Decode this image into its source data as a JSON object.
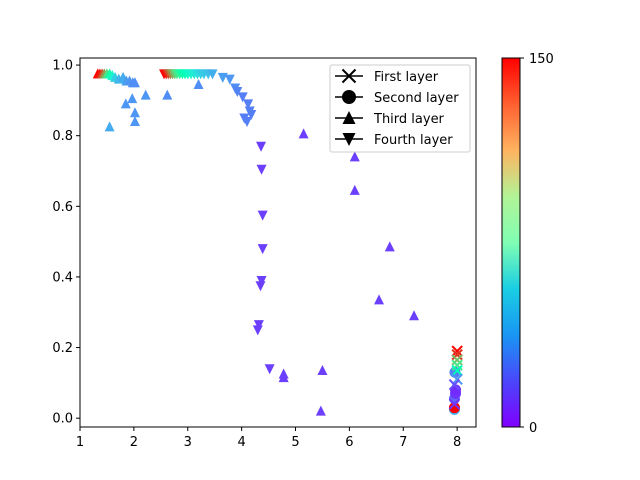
{
  "chart_data": {
    "type": "scatter",
    "title": "",
    "xlabel": "",
    "ylabel": "",
    "xlim": [
      1.0,
      8.35
    ],
    "ylim": [
      -0.025,
      1.02
    ],
    "xticks": [
      "1",
      "2",
      "3",
      "4",
      "5",
      "6",
      "7",
      "8"
    ],
    "yticks": [
      "0.0",
      "0.2",
      "0.4",
      "0.6",
      "0.8",
      "1.0"
    ],
    "grid": false,
    "legend_position": "top-right",
    "colorbar": {
      "min": 0,
      "max": 150,
      "tick_labels": [
        "0",
        "150"
      ],
      "colormap": "rainbow"
    },
    "series": [
      {
        "name": "First layer",
        "marker": "x",
        "points": [
          {
            "x": 8.0,
            "y": 0.19,
            "c": 150
          },
          {
            "x": 8.0,
            "y": 0.18,
            "c": 140
          },
          {
            "x": 8.0,
            "y": 0.165,
            "c": 110
          },
          {
            "x": 8.0,
            "y": 0.15,
            "c": 95
          },
          {
            "x": 8.0,
            "y": 0.135,
            "c": 75
          },
          {
            "x": 8.0,
            "y": 0.11,
            "c": 30
          },
          {
            "x": 7.95,
            "y": 0.095,
            "c": 15
          },
          {
            "x": 7.95,
            "y": 0.04,
            "c": 10
          }
        ]
      },
      {
        "name": "Second layer",
        "marker": "o",
        "points": [
          {
            "x": 7.95,
            "y": 0.025,
            "c": 35
          },
          {
            "x": 7.95,
            "y": 0.03,
            "c": 150
          },
          {
            "x": 7.95,
            "y": 0.055,
            "c": 20
          },
          {
            "x": 7.97,
            "y": 0.07,
            "c": 10
          },
          {
            "x": 7.97,
            "y": 0.08,
            "c": 8
          },
          {
            "x": 7.96,
            "y": 0.13,
            "c": 25
          }
        ]
      },
      {
        "name": "Third layer",
        "marker": "^",
        "points": [
          {
            "x": 1.33,
            "y": 0.975,
            "c": 150
          },
          {
            "x": 1.37,
            "y": 0.975,
            "c": 145
          },
          {
            "x": 1.41,
            "y": 0.975,
            "c": 135
          },
          {
            "x": 1.45,
            "y": 0.975,
            "c": 120
          },
          {
            "x": 1.5,
            "y": 0.975,
            "c": 100
          },
          {
            "x": 1.55,
            "y": 0.975,
            "c": 80
          },
          {
            "x": 1.6,
            "y": 0.97,
            "c": 60
          },
          {
            "x": 1.65,
            "y": 0.965,
            "c": 45
          },
          {
            "x": 1.72,
            "y": 0.96,
            "c": 38
          },
          {
            "x": 1.8,
            "y": 0.965,
            "c": 35
          },
          {
            "x": 1.86,
            "y": 0.955,
            "c": 32
          },
          {
            "x": 1.92,
            "y": 0.955,
            "c": 30
          },
          {
            "x": 1.98,
            "y": 0.95,
            "c": 28
          },
          {
            "x": 2.02,
            "y": 0.95,
            "c": 28
          },
          {
            "x": 1.55,
            "y": 0.825,
            "c": 35
          },
          {
            "x": 1.85,
            "y": 0.89,
            "c": 30
          },
          {
            "x": 1.97,
            "y": 0.905,
            "c": 30
          },
          {
            "x": 2.02,
            "y": 0.865,
            "c": 30
          },
          {
            "x": 2.02,
            "y": 0.84,
            "c": 30
          },
          {
            "x": 2.22,
            "y": 0.915,
            "c": 30
          },
          {
            "x": 2.62,
            "y": 0.915,
            "c": 28
          },
          {
            "x": 3.2,
            "y": 0.945,
            "c": 28
          },
          {
            "x": 5.15,
            "y": 0.805,
            "c": 12
          },
          {
            "x": 6.1,
            "y": 0.74,
            "c": 12
          },
          {
            "x": 6.1,
            "y": 0.645,
            "c": 12
          },
          {
            "x": 6.75,
            "y": 0.485,
            "c": 12
          },
          {
            "x": 6.55,
            "y": 0.335,
            "c": 12
          },
          {
            "x": 7.2,
            "y": 0.29,
            "c": 12
          },
          {
            "x": 4.78,
            "y": 0.125,
            "c": 12
          },
          {
            "x": 4.78,
            "y": 0.115,
            "c": 12
          },
          {
            "x": 5.5,
            "y": 0.135,
            "c": 12
          },
          {
            "x": 5.47,
            "y": 0.02,
            "c": 12
          }
        ]
      },
      {
        "name": "Fourth layer",
        "marker": "v",
        "points": [
          {
            "x": 2.56,
            "y": 0.975,
            "c": 150
          },
          {
            "x": 2.6,
            "y": 0.975,
            "c": 145
          },
          {
            "x": 2.64,
            "y": 0.975,
            "c": 135
          },
          {
            "x": 2.68,
            "y": 0.975,
            "c": 125
          },
          {
            "x": 2.72,
            "y": 0.975,
            "c": 115
          },
          {
            "x": 2.76,
            "y": 0.975,
            "c": 105
          },
          {
            "x": 2.8,
            "y": 0.975,
            "c": 95
          },
          {
            "x": 2.85,
            "y": 0.975,
            "c": 85
          },
          {
            "x": 2.9,
            "y": 0.975,
            "c": 78
          },
          {
            "x": 2.95,
            "y": 0.975,
            "c": 72
          },
          {
            "x": 3.0,
            "y": 0.975,
            "c": 66
          },
          {
            "x": 3.06,
            "y": 0.975,
            "c": 60
          },
          {
            "x": 3.12,
            "y": 0.975,
            "c": 55
          },
          {
            "x": 3.18,
            "y": 0.975,
            "c": 50
          },
          {
            "x": 3.24,
            "y": 0.975,
            "c": 46
          },
          {
            "x": 3.3,
            "y": 0.975,
            "c": 43
          },
          {
            "x": 3.38,
            "y": 0.975,
            "c": 40
          },
          {
            "x": 3.46,
            "y": 0.975,
            "c": 36
          },
          {
            "x": 3.65,
            "y": 0.965,
            "c": 32
          },
          {
            "x": 3.78,
            "y": 0.96,
            "c": 30
          },
          {
            "x": 3.88,
            "y": 0.935,
            "c": 28
          },
          {
            "x": 3.92,
            "y": 0.925,
            "c": 26
          },
          {
            "x": 4.02,
            "y": 0.91,
            "c": 25
          },
          {
            "x": 4.12,
            "y": 0.89,
            "c": 25
          },
          {
            "x": 4.15,
            "y": 0.87,
            "c": 25
          },
          {
            "x": 4.18,
            "y": 0.86,
            "c": 25
          },
          {
            "x": 4.05,
            "y": 0.85,
            "c": 25
          },
          {
            "x": 4.1,
            "y": 0.84,
            "c": 25
          },
          {
            "x": 4.36,
            "y": 0.77,
            "c": 12
          },
          {
            "x": 4.37,
            "y": 0.705,
            "c": 12
          },
          {
            "x": 4.39,
            "y": 0.575,
            "c": 12
          },
          {
            "x": 4.39,
            "y": 0.48,
            "c": 12
          },
          {
            "x": 4.37,
            "y": 0.39,
            "c": 12
          },
          {
            "x": 4.35,
            "y": 0.375,
            "c": 12
          },
          {
            "x": 4.32,
            "y": 0.265,
            "c": 12
          },
          {
            "x": 4.3,
            "y": 0.25,
            "c": 12
          },
          {
            "x": 4.52,
            "y": 0.14,
            "c": 12
          }
        ]
      }
    ]
  }
}
